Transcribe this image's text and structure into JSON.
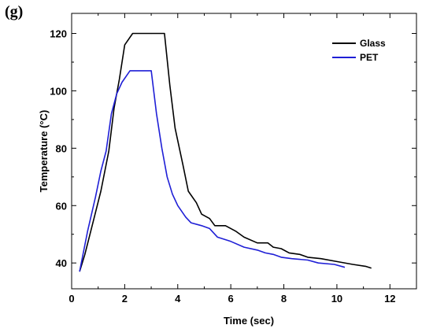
{
  "panel_label": "(g)",
  "chart_data": {
    "type": "line",
    "title": "",
    "xlabel": "Time (sec)",
    "ylabel": "Temperature (°C)",
    "xlim": [
      0,
      13
    ],
    "ylim": [
      31,
      127
    ],
    "x_ticks": [
      0,
      2,
      4,
      6,
      8,
      10,
      12
    ],
    "y_ticks": [
      40,
      60,
      80,
      100,
      120
    ],
    "grid": false,
    "legend_position": "top-right",
    "series": [
      {
        "name": "Glass",
        "color": "#000000",
        "points": [
          [
            0.3,
            37
          ],
          [
            0.5,
            43
          ],
          [
            0.8,
            54
          ],
          [
            1.1,
            65
          ],
          [
            1.4,
            79
          ],
          [
            1.6,
            94
          ],
          [
            1.8,
            104
          ],
          [
            2.0,
            116
          ],
          [
            2.3,
            120
          ],
          [
            3.0,
            120
          ],
          [
            3.5,
            120
          ],
          [
            3.7,
            102
          ],
          [
            3.9,
            87
          ],
          [
            4.2,
            74
          ],
          [
            4.4,
            65
          ],
          [
            4.7,
            61
          ],
          [
            4.9,
            57
          ],
          [
            5.2,
            55.5
          ],
          [
            5.4,
            53
          ],
          [
            5.8,
            53
          ],
          [
            6.2,
            51
          ],
          [
            6.5,
            49
          ],
          [
            7.0,
            47
          ],
          [
            7.4,
            47
          ],
          [
            7.6,
            45.5
          ],
          [
            7.9,
            45
          ],
          [
            8.2,
            43.5
          ],
          [
            8.6,
            43
          ],
          [
            8.9,
            42
          ],
          [
            9.4,
            41.5
          ],
          [
            10.0,
            40.5
          ],
          [
            10.6,
            39.5
          ],
          [
            11.1,
            38.8
          ],
          [
            11.3,
            38.2
          ]
        ]
      },
      {
        "name": "PET",
        "color": "#1f1fd6",
        "points": [
          [
            0.3,
            37
          ],
          [
            0.6,
            51
          ],
          [
            0.9,
            63
          ],
          [
            1.1,
            72
          ],
          [
            1.3,
            79
          ],
          [
            1.5,
            92
          ],
          [
            1.7,
            99
          ],
          [
            1.9,
            103
          ],
          [
            2.2,
            107
          ],
          [
            2.7,
            107
          ],
          [
            3.0,
            107
          ],
          [
            3.2,
            92
          ],
          [
            3.4,
            80
          ],
          [
            3.6,
            70
          ],
          [
            3.8,
            64
          ],
          [
            4.0,
            60
          ],
          [
            4.3,
            56
          ],
          [
            4.5,
            54
          ],
          [
            4.9,
            53
          ],
          [
            5.2,
            52
          ],
          [
            5.5,
            49
          ],
          [
            6.0,
            47.5
          ],
          [
            6.5,
            45.5
          ],
          [
            7.0,
            44.5
          ],
          [
            7.3,
            43.5
          ],
          [
            7.6,
            43
          ],
          [
            7.9,
            42
          ],
          [
            8.3,
            41.5
          ],
          [
            8.9,
            41
          ],
          [
            9.3,
            40
          ],
          [
            9.9,
            39.5
          ],
          [
            10.3,
            38.5
          ]
        ]
      }
    ]
  }
}
